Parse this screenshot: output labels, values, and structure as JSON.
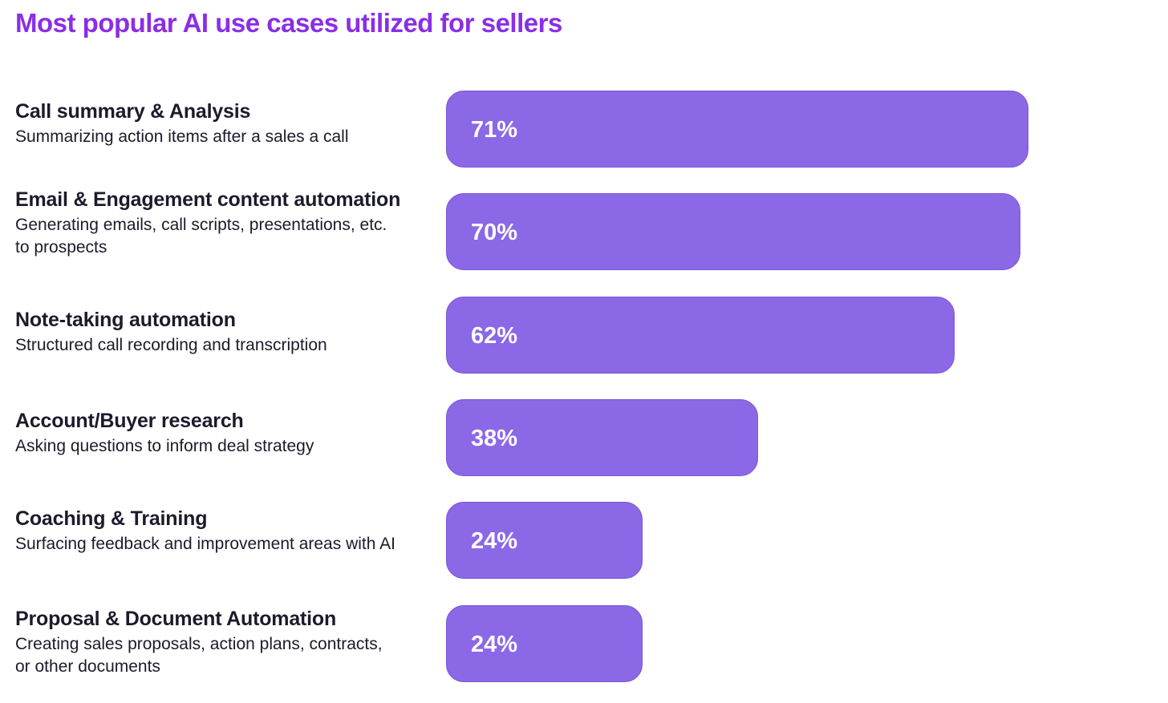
{
  "colors": {
    "title": "#8a2ee6",
    "bar": "#8b68e6",
    "text": "#1b1b2b",
    "value_text": "#ffffff"
  },
  "chart_data": {
    "type": "bar",
    "orientation": "horizontal",
    "title": "Most popular AI use cases utilized for sellers",
    "xlim": [
      0,
      100
    ],
    "grid": false,
    "legend": "none",
    "categories": [
      "Call summary & Analysis",
      "Email & Engagement content automation",
      "Note-taking automation",
      "Account/Buyer research",
      "Coaching & Training",
      "Proposal & Document Automation"
    ],
    "descriptions": [
      "Summarizing action items after a sales a call",
      "Generating emails, call scripts, presentations, etc. to prospects",
      "Structured call recording and transcription",
      "Asking questions to inform deal strategy",
      "Surfacing feedback and improvement areas with AI",
      "Creating sales proposals, action plans, contracts, or other documents"
    ],
    "values": [
      71,
      70,
      62,
      38,
      24,
      24
    ],
    "value_labels": [
      "71%",
      "70%",
      "62%",
      "38%",
      "24%",
      "24%"
    ]
  }
}
